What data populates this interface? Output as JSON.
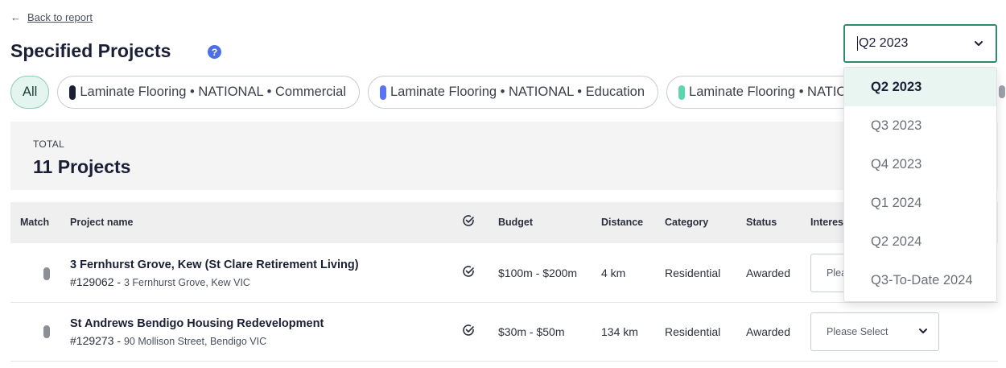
{
  "nav": {
    "back_arrow": "←",
    "back_label": "Back to report"
  },
  "header": {
    "title": "Specified Projects",
    "help_glyph": "?"
  },
  "filters": [
    {
      "label": "All",
      "active": true
    },
    {
      "label": "Laminate Flooring • NATIONAL • Commercial",
      "color": "#1a1f36"
    },
    {
      "label": "Laminate Flooring • NATIONAL • Education",
      "color": "#5b74f0"
    },
    {
      "label": "Laminate Flooring • NATIONAL • Health",
      "color": "#5ed6ac"
    }
  ],
  "summary": {
    "label": "TOTAL",
    "value": "11 Projects"
  },
  "table": {
    "headers": {
      "match": "Match",
      "project_name": "Project name",
      "budget": "Budget",
      "distance": "Distance",
      "category": "Category",
      "status": "Status",
      "interest": "Interest"
    },
    "rows": [
      {
        "name": "3 Fernhurst Grove, Kew (St Clare Retirement Living)",
        "id": "#129062 -",
        "address": "3 Fernhurst Grove, Kew VIC",
        "budget": "$100m - $200m",
        "distance": "4 km",
        "category": "Residential",
        "status": "Awarded",
        "interest_placeholder": "Please Select"
      },
      {
        "name": "St Andrews Bendigo Housing Redevelopment",
        "id": "#129273 -",
        "address": "90 Mollison Street, Bendigo VIC",
        "budget": "$30m - $50m",
        "distance": "134 km",
        "category": "Residential",
        "status": "Awarded",
        "interest_placeholder": "Please Select"
      }
    ]
  },
  "period_select": {
    "value": "Q2 2023",
    "options": [
      "Q2 2023",
      "Q3 2023",
      "Q4 2023",
      "Q1 2024",
      "Q2 2024",
      "Q3-To-Date 2024"
    ],
    "selected_index": 0
  },
  "colors": {
    "accent": "#2e8b6e",
    "selected_bg": "#e8f5f0",
    "help": "#4c6fe8"
  }
}
